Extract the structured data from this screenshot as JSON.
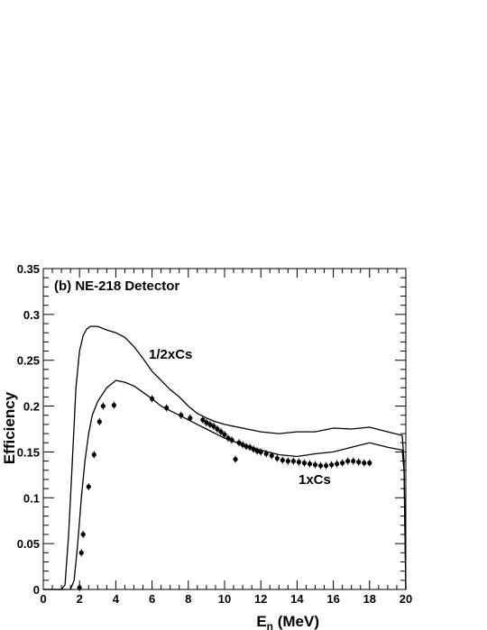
{
  "chart_data": {
    "type": "line",
    "title": "",
    "panel_label": "(b) NE-218 Detector",
    "xlabel_main": "E",
    "xlabel_sub": "n",
    "xlabel_unit": " (MeV)",
    "ylabel": "Efficiency",
    "xlim": [
      0,
      20
    ],
    "ylim": [
      0,
      0.35
    ],
    "x_ticks": [
      0,
      2,
      4,
      6,
      8,
      10,
      12,
      14,
      16,
      18,
      20
    ],
    "x_tick_labels": [
      "0",
      "2",
      "4",
      "6",
      "8",
      "10",
      "12",
      "14",
      "16",
      "18",
      "20"
    ],
    "y_ticks": [
      0,
      0.05,
      0.1,
      0.15,
      0.2,
      0.25,
      0.3,
      0.35
    ],
    "y_tick_labels": [
      "0",
      "0.05",
      "0.1",
      "0.15",
      "0.2",
      "0.25",
      "0.3",
      "0.35"
    ],
    "grid": false,
    "legend": "none",
    "annotations": [
      "1/2xCs",
      "1xCs"
    ],
    "series": [
      {
        "name": "1/2xCs",
        "kind": "line",
        "x": [
          0.0,
          0.5,
          1.0,
          1.2,
          1.4,
          1.6,
          1.8,
          2.0,
          2.2,
          2.4,
          2.6,
          3.0,
          3.5,
          4.0,
          4.5,
          5.0,
          5.5,
          6.0,
          6.5,
          7.0,
          7.5,
          8.0,
          8.5,
          9.0,
          9.5,
          10.0,
          11.0,
          12.0,
          13.0,
          14.0,
          15.0,
          16.0,
          17.0,
          18.0,
          19.0,
          19.8,
          19.9,
          20.0
        ],
        "y": [
          0.0,
          0.0,
          0.0,
          0.005,
          0.06,
          0.14,
          0.22,
          0.26,
          0.277,
          0.284,
          0.287,
          0.287,
          0.283,
          0.28,
          0.275,
          0.265,
          0.252,
          0.238,
          0.228,
          0.218,
          0.21,
          0.2,
          0.192,
          0.187,
          0.183,
          0.18,
          0.176,
          0.172,
          0.17,
          0.172,
          0.172,
          0.176,
          0.175,
          0.177,
          0.172,
          0.168,
          0.14,
          0.0
        ]
      },
      {
        "name": "1xCs",
        "kind": "line",
        "x": [
          0.0,
          1.0,
          1.5,
          1.7,
          1.9,
          2.1,
          2.3,
          2.5,
          2.7,
          3.0,
          3.5,
          4.0,
          4.5,
          5.0,
          5.5,
          6.0,
          6.5,
          7.0,
          7.5,
          8.0,
          8.5,
          9.0,
          9.5,
          10.0,
          11.0,
          12.0,
          13.0,
          14.0,
          15.0,
          16.0,
          17.0,
          18.0,
          19.0,
          19.8,
          19.9,
          20.0
        ],
        "y": [
          0.0,
          0.0,
          0.0,
          0.01,
          0.05,
          0.1,
          0.14,
          0.17,
          0.19,
          0.205,
          0.22,
          0.228,
          0.226,
          0.222,
          0.215,
          0.208,
          0.2,
          0.195,
          0.19,
          0.185,
          0.18,
          0.175,
          0.17,
          0.165,
          0.158,
          0.152,
          0.147,
          0.145,
          0.148,
          0.15,
          0.155,
          0.16,
          0.155,
          0.152,
          0.13,
          0.0
        ]
      },
      {
        "name": "data",
        "kind": "scatter",
        "x": [
          2.0,
          2.1,
          2.2,
          2.5,
          2.8,
          3.1,
          3.3,
          3.9,
          6.0,
          6.8,
          7.6,
          8.1,
          8.8,
          9.0,
          9.2,
          9.4,
          9.6,
          9.8,
          10.0,
          10.2,
          10.4,
          10.6,
          10.8,
          11.0,
          11.2,
          11.4,
          11.6,
          11.8,
          12.0,
          12.3,
          12.6,
          12.9,
          13.2,
          13.5,
          13.8,
          14.1,
          14.4,
          14.7,
          15.0,
          15.3,
          15.6,
          15.9,
          16.2,
          16.5,
          16.8,
          17.1,
          17.4,
          17.7,
          18.0
        ],
        "y": [
          0.002,
          0.04,
          0.06,
          0.112,
          0.147,
          0.183,
          0.2,
          0.201,
          0.208,
          0.198,
          0.19,
          0.187,
          0.185,
          0.182,
          0.18,
          0.178,
          0.175,
          0.172,
          0.169,
          0.165,
          0.163,
          0.142,
          0.16,
          0.158,
          0.156,
          0.155,
          0.153,
          0.151,
          0.15,
          0.148,
          0.146,
          0.143,
          0.141,
          0.14,
          0.14,
          0.139,
          0.138,
          0.137,
          0.136,
          0.135,
          0.135,
          0.136,
          0.137,
          0.138,
          0.14,
          0.14,
          0.139,
          0.138,
          0.138
        ]
      }
    ]
  }
}
